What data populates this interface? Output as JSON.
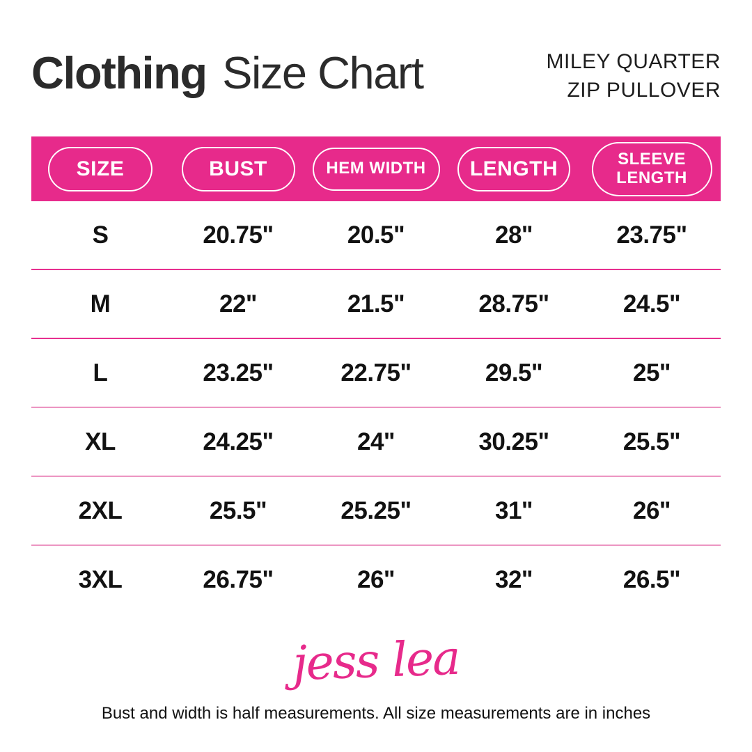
{
  "header": {
    "title_bold": "Clothing",
    "title_light": "Size Chart",
    "product_line1": "MILEY QUARTER",
    "product_line2": "ZIP PULLOVER"
  },
  "table": {
    "columns": [
      {
        "label": "SIZE"
      },
      {
        "label": "BUST"
      },
      {
        "label": "HEM WIDTH"
      },
      {
        "label": "LENGTH"
      },
      {
        "label": "SLEEVE LENGTH"
      }
    ],
    "rows": [
      {
        "size": "S",
        "bust": "20.75\"",
        "hem_width": "20.5\"",
        "length": "28\"",
        "sleeve_length": "23.75\""
      },
      {
        "size": "M",
        "bust": "22\"",
        "hem_width": "21.5\"",
        "length": "28.75\"",
        "sleeve_length": "24.5\""
      },
      {
        "size": "L",
        "bust": "23.25\"",
        "hem_width": "22.75\"",
        "length": "29.5\"",
        "sleeve_length": "25\""
      },
      {
        "size": "XL",
        "bust": "24.25\"",
        "hem_width": "24\"",
        "length": "30.25\"",
        "sleeve_length": "25.5\""
      },
      {
        "size": "2XL",
        "bust": "25.5\"",
        "hem_width": "25.25\"",
        "length": "31\"",
        "sleeve_length": "26\""
      },
      {
        "size": "3XL",
        "bust": "26.75\"",
        "hem_width": "26\"",
        "length": "32\"",
        "sleeve_length": "26.5\""
      }
    ]
  },
  "colors": {
    "accent_pink": "#e72a8b",
    "divider_strong": "#e73090",
    "divider_soft": "#ec95c2",
    "title_text": "#2b2b2b",
    "cell_text": "#121212"
  },
  "logo": {
    "brand": "jess lea"
  },
  "footer": {
    "note": "Bust and width is half measurements. All size measurements are in inches"
  }
}
